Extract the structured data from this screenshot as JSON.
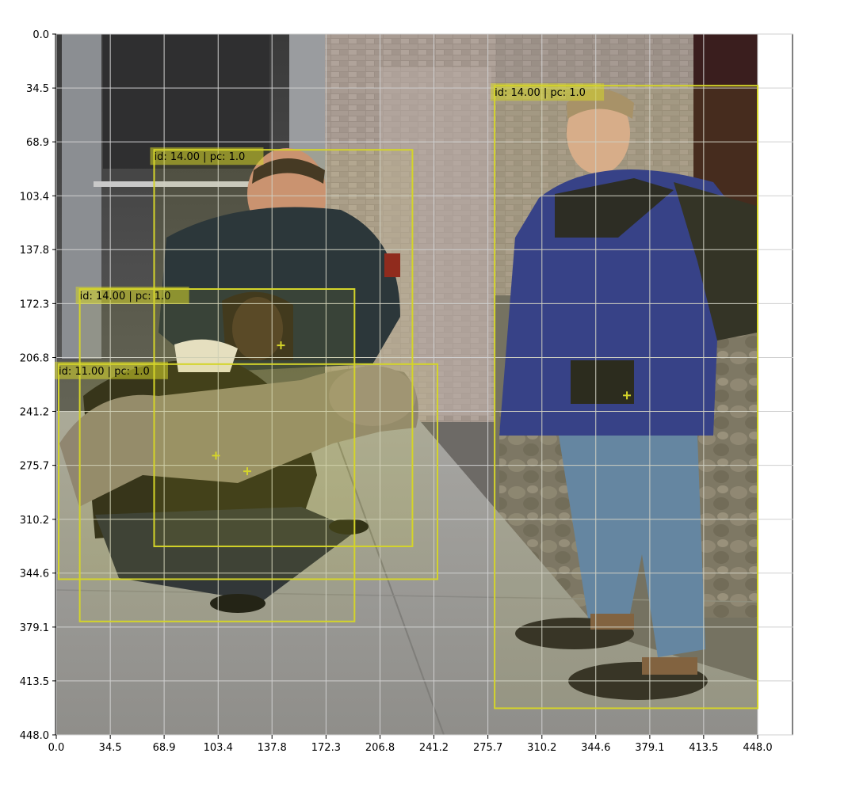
{
  "chart_data": {
    "type": "scatter",
    "title": "",
    "xlabel": "",
    "ylabel": "",
    "xlim": [
      0.0,
      448.0
    ],
    "ylim": [
      448.0,
      0.0
    ],
    "grid": true,
    "x_ticks": [
      "0.0",
      "34.5",
      "68.9",
      "103.4",
      "137.8",
      "172.3",
      "206.8",
      "241.2",
      "275.7",
      "310.2",
      "344.6",
      "379.1",
      "413.5",
      "448.0"
    ],
    "y_ticks": [
      "0.0",
      "34.5",
      "68.9",
      "103.4",
      "137.8",
      "172.3",
      "206.8",
      "241.2",
      "275.7",
      "310.2",
      "344.6",
      "379.1",
      "413.5",
      "448.0"
    ],
    "background_image": "street-photo-three-people-with-dog",
    "box_color": "#d4d42a",
    "boxes": [
      {
        "label": "id: 14.00 | pc: 1.0",
        "x1": 280.0,
        "y1": 33.0,
        "x2": 448.0,
        "y2": 431.0,
        "center": [
          364.5,
          231.0
        ]
      },
      {
        "label": "id: 14.00 | pc: 1.0",
        "x1": 62.5,
        "y1": 74.0,
        "x2": 227.5,
        "y2": 327.5,
        "center": [
          143.5,
          199.0
        ]
      },
      {
        "label": "id: 14.00 | pc: 1.0",
        "x1": 15.0,
        "y1": 163.0,
        "x2": 190.5,
        "y2": 375.5,
        "center": [
          102.0,
          269.5
        ]
      },
      {
        "label": "id: 11.00 | pc: 1.0",
        "x1": 1.5,
        "y1": 211.0,
        "x2": 243.5,
        "y2": 348.5,
        "center": [
          122.0,
          279.5
        ]
      }
    ]
  }
}
